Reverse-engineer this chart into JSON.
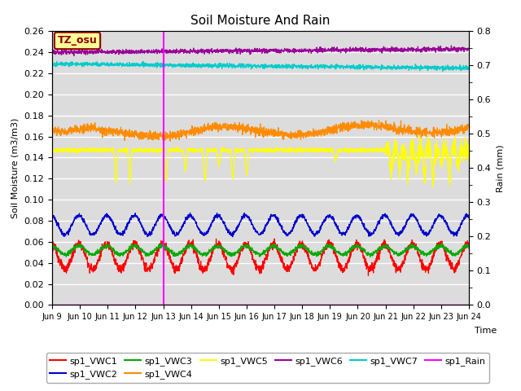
{
  "title": "Soil Moisture And Rain",
  "xlabel": "Time",
  "ylabel_left": "Soil Moisture (m3/m3)",
  "ylabel_right": "Rain (mm)",
  "ylim_left": [
    0.0,
    0.26
  ],
  "ylim_right": [
    0.0,
    0.8
  ],
  "yticks_left": [
    0.0,
    0.02,
    0.04,
    0.06,
    0.08,
    0.1,
    0.12,
    0.14,
    0.16,
    0.18,
    0.2,
    0.22,
    0.24,
    0.26
  ],
  "yticks_right": [
    0.0,
    0.1,
    0.2,
    0.3,
    0.4,
    0.5,
    0.6,
    0.7,
    0.8
  ],
  "xtick_labels": [
    "Jun 9",
    "Jun 10",
    "Jun 11",
    "Jun 12",
    "Jun 13",
    "Jun 14",
    "Jun 15",
    "Jun 16",
    "Jun 17",
    "Jun 18",
    "Jun 19",
    "Jun 20",
    "Jun 21",
    "Jun 22",
    "Jun 23",
    "Jun 24"
  ],
  "vline_color": "#FF00FF",
  "annotation_text": "TZ_osu",
  "annotation_box_color": "#FFFF99",
  "annotation_border_color": "#8B0000",
  "background_color": "#DCDCDC",
  "grid_color": "#FFFFFF",
  "colors": {
    "vwc1": "#FF0000",
    "vwc2": "#0000CC",
    "vwc3": "#00AA00",
    "vwc4": "#FF8C00",
    "vwc5": "#FFFF00",
    "vwc6": "#990099",
    "vwc7": "#00CCCC",
    "rain": "#FF00FF"
  },
  "legend_row1": [
    {
      "label": "sp1_VWC1",
      "color": "#FF0000"
    },
    {
      "label": "sp1_VWC2",
      "color": "#0000CC"
    },
    {
      "label": "sp1_VWC3",
      "color": "#00AA00"
    },
    {
      "label": "sp1_VWC4",
      "color": "#FF8C00"
    },
    {
      "label": "sp1_VWC5",
      "color": "#FFFF00"
    },
    {
      "label": "sp1_VWC6",
      "color": "#990099"
    }
  ],
  "legend_row2": [
    {
      "label": "sp1_VWC7",
      "color": "#00CCCC"
    },
    {
      "label": "sp1_Rain",
      "color": "#FF00FF"
    }
  ]
}
